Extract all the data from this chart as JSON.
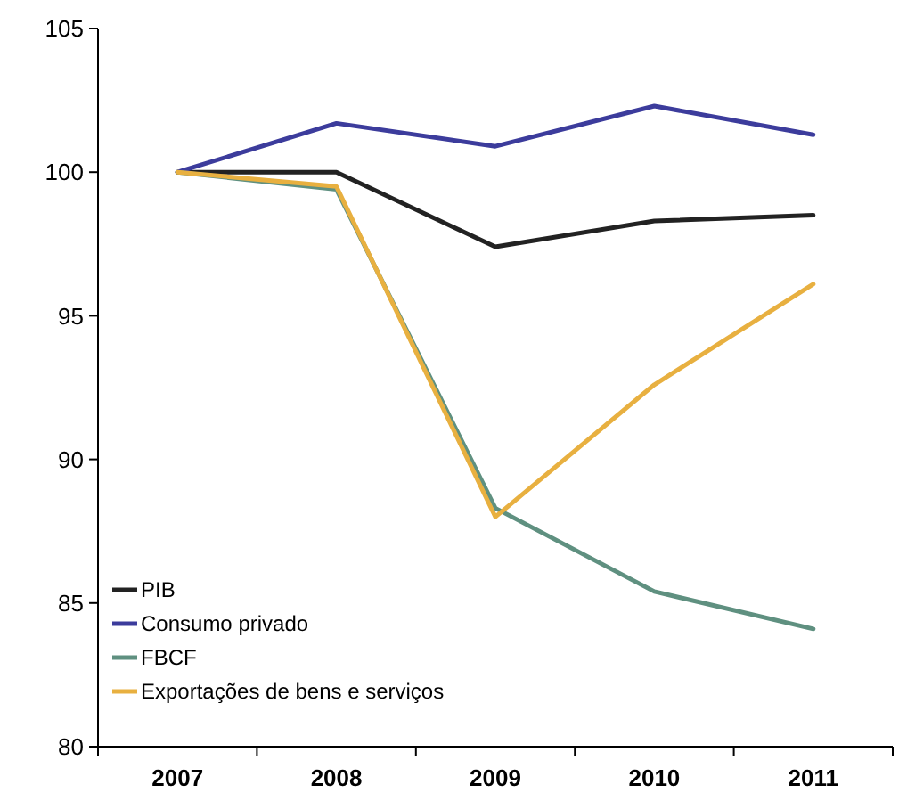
{
  "chart_data": {
    "type": "line",
    "categories": [
      "2007",
      "2008",
      "2009",
      "2010",
      "2011"
    ],
    "series": [
      {
        "name": "PIB",
        "color": "#222222",
        "values": [
          100,
          100,
          97.4,
          98.3,
          98.5
        ]
      },
      {
        "name": "Consumo privado",
        "color": "#3c3c9c",
        "values": [
          100,
          101.7,
          100.9,
          102.3,
          101.3
        ]
      },
      {
        "name": "FBCF",
        "color": "#5f9080",
        "values": [
          100,
          99.4,
          88.3,
          85.4,
          84.1
        ]
      },
      {
        "name": "Exportações de bens e serviços",
        "color": "#e8b040",
        "values": [
          100,
          99.5,
          88.0,
          92.6,
          96.1
        ]
      }
    ],
    "ylim": [
      80,
      105
    ],
    "yticks": [
      80,
      85,
      90,
      95,
      100,
      105
    ],
    "grid": false,
    "legend": "bottom left",
    "line_style": "solid",
    "marker": "none"
  }
}
